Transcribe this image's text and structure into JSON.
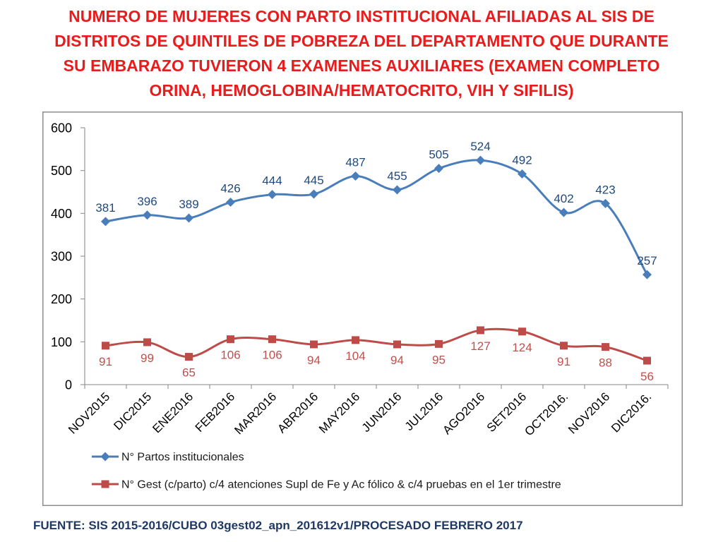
{
  "chart_data": {
    "type": "line",
    "title": "NUMERO DE MUJERES CON PARTO INSTITUCIONAL AFILIADAS AL SIS DE DISTRITOS DE QUINTILES DE POBREZA DEL DEPARTAMENTO QUE DURANTE SU EMBARAZO TUVIERON  4 EXAMENES AUXILIARES (EXAMEN COMPLETO ORINA, HEMOGLOBINA/HEMATOCRITO, VIH Y SIFILIS)",
    "categories": [
      "NOV2015",
      "DIC2015",
      "ENE2016",
      "FEB2016",
      "MAR2016",
      "ABR2016",
      "MAY2016",
      "JUN2016",
      "JUL2016",
      "AGO2016",
      "SET2016",
      "OCT2016.",
      "NOV2016",
      "DIC2016."
    ],
    "series": [
      {
        "name": "N° Partos institucionales",
        "values": [
          381,
          396,
          389,
          426,
          444,
          445,
          487,
          455,
          505,
          524,
          492,
          402,
          423,
          257
        ],
        "color": "#4A7EBB",
        "label_color": "#1F497D",
        "marker": "diamond",
        "label_position": "above"
      },
      {
        "name": "N° Gest (c/parto) c/4 atenciones Supl de Fe y Ac fólico & c/4 pruebas en el 1er trimestre",
        "values": [
          91,
          99,
          65,
          106,
          106,
          94,
          104,
          94,
          95,
          127,
          124,
          91,
          88,
          56
        ],
        "color": "#BE4B48",
        "label_color": "#C0504D",
        "marker": "square",
        "label_position": "below"
      }
    ],
    "ylim": [
      0,
      600
    ],
    "yticks": [
      0,
      100,
      200,
      300,
      400,
      500,
      600
    ],
    "grid": false,
    "smooth": true,
    "legend": "bottom"
  },
  "source": "FUENTE: SIS 2015-2016/CUBO 03gest02_apn_201612v1/PROCESADO FEBRERO 2017",
  "colors": {
    "title": "#E81C1C",
    "source": "#1F3864",
    "axis": "#868686",
    "frame": "#8C8C8C",
    "tick_label": "#000000",
    "legend_label": "#1A1A1A"
  }
}
